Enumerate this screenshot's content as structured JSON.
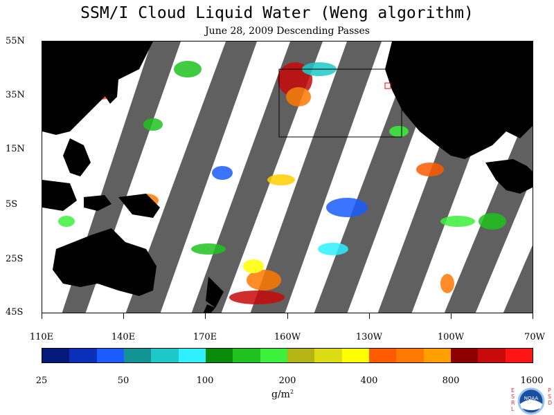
{
  "title": "SSM/I Cloud Liquid Water (Weng algorithm)",
  "subtitle": "June 28, 2009  Descending Passes",
  "y_labels": [
    "55N",
    "35N",
    "15N",
    "5S",
    "25S",
    "45S"
  ],
  "x_labels": [
    "110E",
    "140E",
    "170E",
    "160W",
    "130W",
    "100W",
    "70W"
  ],
  "colorbar": {
    "colors": [
      "#041a7a",
      "#0a2fb8",
      "#1a5cff",
      "#139494",
      "#1ec8c8",
      "#2ef0ff",
      "#0a8c0a",
      "#1fc21f",
      "#3cf03c",
      "#b4b414",
      "#dcdc14",
      "#ffff00",
      "#ff5a00",
      "#ff7800",
      "#ffa000",
      "#8c0000",
      "#c80a0a",
      "#ff1414"
    ],
    "labels": [
      "25",
      "50",
      "100",
      "200",
      "400",
      "800",
      "1600"
    ]
  },
  "unit": "g/m",
  "unit_sup": "2",
  "logo": {
    "text": "NOAA",
    "left_letters": "ESRL",
    "right_letters": "PSD"
  },
  "colors": {
    "land": "#000000",
    "no_data": "#606060",
    "background": "#ffffff"
  }
}
